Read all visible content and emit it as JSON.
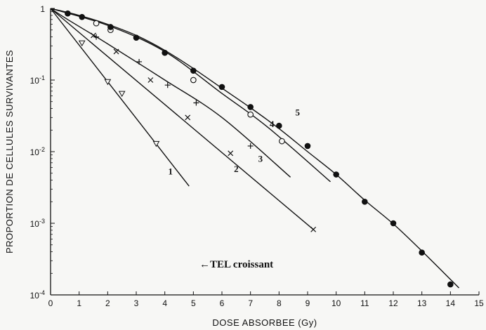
{
  "chart_data": {
    "type": "scatter",
    "title": "",
    "xlabel": "DOSE ABSORBEE (Gy)",
    "ylabel": "PROPORTION DE CELLULES SURVIVANTES",
    "xlim": [
      0,
      15
    ],
    "ylim": [
      0.0001,
      1
    ],
    "yscale": "log",
    "x_ticks": [
      0,
      1,
      2,
      3,
      4,
      5,
      6,
      7,
      8,
      9,
      10,
      11,
      12,
      13,
      14,
      15
    ],
    "y_ticks": [
      {
        "value": 1,
        "label": "1"
      },
      {
        "value": 0.1,
        "label": "10",
        "exp": "-1"
      },
      {
        "value": 0.01,
        "label": "10",
        "exp": "-2"
      },
      {
        "value": 0.001,
        "label": "10",
        "exp": "-3"
      },
      {
        "value": 0.0001,
        "label": "10",
        "exp": "-4"
      }
    ],
    "annotation": "←TEL croissant",
    "series": [
      {
        "name": "1",
        "marker": "triangle-down",
        "points": [
          [
            1.1,
            0.33
          ],
          [
            2.0,
            0.095
          ],
          [
            2.5,
            0.065
          ],
          [
            3.7,
            0.013
          ]
        ],
        "curve": [
          [
            0,
            1
          ],
          [
            4.85,
            0.0033
          ]
        ]
      },
      {
        "name": "2",
        "marker": "x",
        "points": [
          [
            1.5,
            0.42
          ],
          [
            2.3,
            0.25
          ],
          [
            3.5,
            0.1
          ],
          [
            4.8,
            0.03
          ],
          [
            6.3,
            0.0095
          ],
          [
            9.2,
            0.00082
          ]
        ],
        "curve": [
          [
            0,
            1
          ],
          [
            9.2,
            0.00082
          ]
        ]
      },
      {
        "name": "3",
        "marker": "plus",
        "points": [
          [
            1.6,
            0.4
          ],
          [
            3.1,
            0.18
          ],
          [
            4.1,
            0.085
          ],
          [
            5.1,
            0.048
          ],
          [
            7.0,
            0.012
          ]
        ],
        "curve": [
          [
            0,
            1
          ],
          [
            0.6,
            0.7
          ],
          [
            2,
            0.32
          ],
          [
            4,
            0.1
          ],
          [
            6,
            0.03
          ],
          [
            8.4,
            0.0044
          ]
        ]
      },
      {
        "name": "4",
        "marker": "circle-open",
        "points": [
          [
            1.6,
            0.62
          ],
          [
            2.1,
            0.5
          ],
          [
            5.0,
            0.1
          ],
          [
            7.0,
            0.033
          ],
          [
            8.1,
            0.014
          ]
        ],
        "curve": [
          [
            0,
            1
          ],
          [
            2,
            0.58
          ],
          [
            4,
            0.25
          ],
          [
            6,
            0.065
          ],
          [
            7.6,
            0.022
          ],
          [
            9.8,
            0.0038
          ]
        ]
      },
      {
        "name": "5",
        "marker": "circle-filled",
        "points": [
          [
            0.6,
            0.85
          ],
          [
            1.1,
            0.76
          ],
          [
            2.1,
            0.55
          ],
          [
            3.0,
            0.39
          ],
          [
            4.0,
            0.24
          ],
          [
            5.0,
            0.135
          ],
          [
            6.0,
            0.08
          ],
          [
            7.0,
            0.042
          ],
          [
            8.0,
            0.023
          ],
          [
            9.0,
            0.012
          ],
          [
            10.0,
            0.0048
          ],
          [
            11.0,
            0.002
          ],
          [
            12.0,
            0.001
          ],
          [
            13.0,
            0.00039
          ],
          [
            14.0,
            0.00014
          ]
        ],
        "curve": [
          [
            0,
            1
          ],
          [
            1,
            0.8
          ],
          [
            2,
            0.6
          ],
          [
            3,
            0.42
          ],
          [
            4,
            0.26
          ],
          [
            5,
            0.145
          ],
          [
            6,
            0.077
          ],
          [
            7,
            0.041
          ],
          [
            8,
            0.021
          ],
          [
            9,
            0.01
          ],
          [
            10,
            0.0048
          ],
          [
            11,
            0.0021
          ],
          [
            12,
            0.00098
          ],
          [
            13,
            0.00041
          ],
          [
            14.3,
            0.000125
          ]
        ]
      }
    ]
  }
}
